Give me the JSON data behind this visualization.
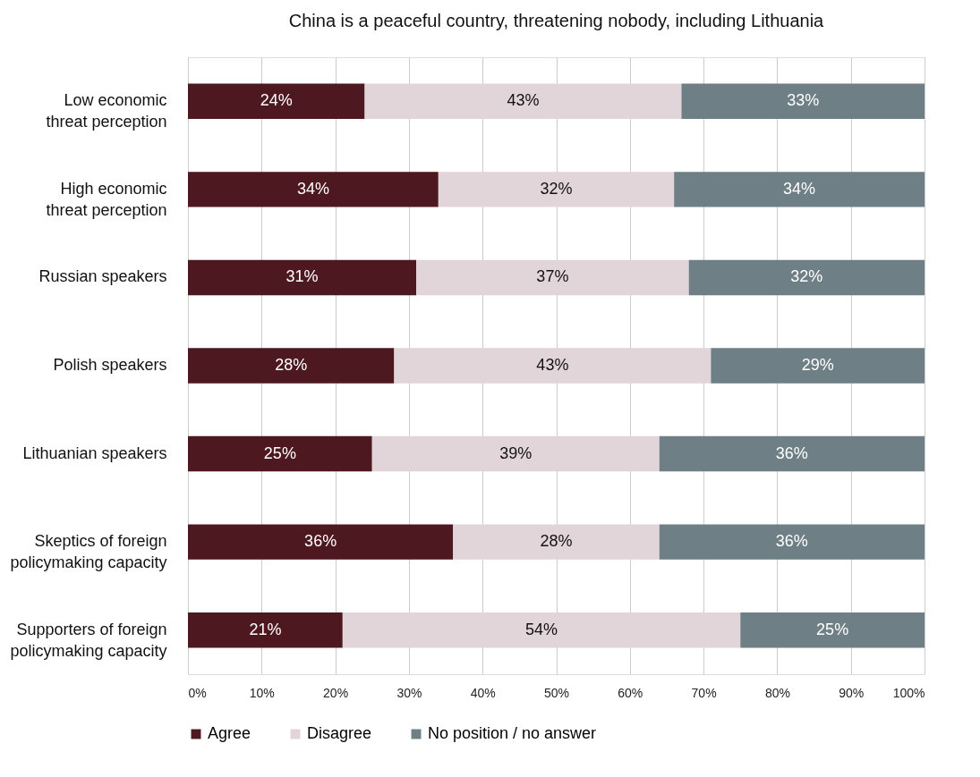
{
  "chart_data": {
    "type": "bar",
    "orientation": "horizontal",
    "stacked": true,
    "title": "China is a peaceful country, threatening nobody, including Lithuania",
    "categories": [
      "Low economic\nthreat perception",
      "High economic\nthreat perception",
      "Russian speakers",
      "Polish speakers",
      "Lithuanian speakers",
      "Skeptics of foreign\npolicymaking capacity",
      "Supporters of foreign\npolicymaking capacity"
    ],
    "series": [
      {
        "name": "Agree",
        "color": "#4d1820",
        "values": [
          24,
          34,
          31,
          28,
          25,
          36,
          21
        ],
        "value_labels": [
          "24%",
          "34%",
          "31%",
          "28%",
          "25%",
          "36%",
          "21%"
        ]
      },
      {
        "name": "Disagree",
        "color": "#e2d5d9",
        "values": [
          43,
          32,
          37,
          43,
          39,
          28,
          54
        ],
        "value_labels": [
          "43%",
          "32%",
          "37%",
          "43%",
          "39%",
          "28%",
          "54%"
        ]
      },
      {
        "name": "No position / no answer",
        "color": "#6e7f85",
        "values": [
          33,
          34,
          32,
          29,
          36,
          36,
          25
        ],
        "value_labels": [
          "33%",
          "34%",
          "32%",
          "29%",
          "36%",
          "36%",
          "25%"
        ]
      }
    ],
    "xlim": [
      0,
      100
    ],
    "xticks": [
      {
        "value": 0,
        "label": "0%"
      },
      {
        "value": 10,
        "label": "10%"
      },
      {
        "value": 20,
        "label": "20%"
      },
      {
        "value": 30,
        "label": "30%"
      },
      {
        "value": 40,
        "label": "40%"
      },
      {
        "value": 50,
        "label": "50%"
      },
      {
        "value": 60,
        "label": "60%"
      },
      {
        "value": 70,
        "label": "70%"
      },
      {
        "value": 80,
        "label": "80%"
      },
      {
        "value": 90,
        "label": "90%"
      },
      {
        "value": 100,
        "label": "100%"
      }
    ],
    "grid": "x",
    "legend": "bottom"
  }
}
